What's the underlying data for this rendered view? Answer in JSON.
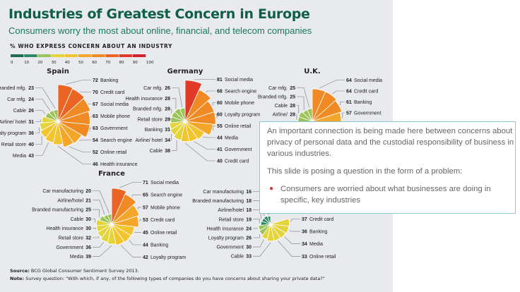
{
  "title": "Industries of Greatest Concern in Europe",
  "subtitle": "Consumers worry the most about online, financial, and telecom companies",
  "legend": {
    "title": "% WHO EXPRESS CONCERN ABOUT AN INDUSTRY",
    "ticks": [
      "0",
      "10",
      "20",
      "30",
      "40",
      "50",
      "60",
      "70",
      "80",
      "90",
      "100"
    ],
    "colors": [
      "#1f6b4f",
      "#2e8a62",
      "#9cc25a",
      "#e4d43c",
      "#f2c42e",
      "#f4a62a",
      "#ef8a25",
      "#ea6524",
      "#e23a26",
      "#d3202b"
    ]
  },
  "chart_data": [
    {
      "type": "polar-area",
      "title": "Spain",
      "right": [
        {
          "label": "Banking",
          "value": 72
        },
        {
          "label": "Credit card",
          "value": 70
        },
        {
          "label": "Social media",
          "value": 67
        },
        {
          "label": "Mobile phone",
          "value": 63
        },
        {
          "label": "Government",
          "value": 63
        },
        {
          "label": "Search engine",
          "value": 54
        },
        {
          "label": "Online retail",
          "value": 52
        },
        {
          "label": "Health insurance",
          "value": 46
        }
      ],
      "left": [
        {
          "label": "Branded mfg.",
          "value": 23
        },
        {
          "label": "Car mfg.",
          "value": 24
        },
        {
          "label": "Cable",
          "value": 26
        },
        {
          "label": "Airline/ hotel",
          "value": 31
        },
        {
          "label": "Loyalty program",
          "value": 36
        },
        {
          "label": "Retail store",
          "value": 40
        },
        {
          "label": "Media",
          "value": 43
        }
      ]
    },
    {
      "type": "polar-area",
      "title": "Germany",
      "right": [
        {
          "label": "Social media",
          "value": 81
        },
        {
          "label": "Search engine",
          "value": 68
        },
        {
          "label": "Mobile phone",
          "value": 60
        },
        {
          "label": "Loyalty program",
          "value": 60
        },
        {
          "label": "Online retail",
          "value": 55
        },
        {
          "label": "Media",
          "value": 44
        },
        {
          "label": "Government",
          "value": 41
        },
        {
          "label": "Credit card",
          "value": 40
        }
      ],
      "left": [
        {
          "label": "Car mfg.",
          "value": 26
        },
        {
          "label": "Health insurance",
          "value": 28
        },
        {
          "label": "Branded mfg.",
          "value": 28
        },
        {
          "label": "Retail store",
          "value": 28
        },
        {
          "label": "Banking",
          "value": 31
        },
        {
          "label": "Airline/ hotel",
          "value": 34
        },
        {
          "label": "Cable",
          "value": 38
        }
      ]
    },
    {
      "type": "polar-area",
      "title": "U.K.",
      "right": [
        {
          "label": "Social media",
          "value": 64
        },
        {
          "label": "Credit card",
          "value": 64
        },
        {
          "label": "Banking",
          "value": 61
        },
        {
          "label": "Government",
          "value": 57
        }
      ],
      "left": [
        {
          "label": "Car mfg.",
          "value": 25
        },
        {
          "label": "Branded mfg.",
          "value": 25
        },
        {
          "label": "Cable",
          "value": 28
        },
        {
          "label": "Airline/",
          "value": 28
        }
      ]
    },
    {
      "type": "polar-area",
      "title": "France",
      "right": [
        {
          "label": "Social media",
          "value": 71
        },
        {
          "label": "Search engine",
          "value": 65
        },
        {
          "label": "Mobile phone",
          "value": 57
        },
        {
          "label": "Credit card",
          "value": 53
        },
        {
          "label": "Online retail",
          "value": 45
        },
        {
          "label": "Banking",
          "value": 44
        },
        {
          "label": "Loyalty program",
          "value": 42
        }
      ],
      "left": [
        {
          "label": "Car manufacturing",
          "value": 20
        },
        {
          "label": "Airline/hotel",
          "value": 21
        },
        {
          "label": "Branded manufacturing",
          "value": 25
        },
        {
          "label": "Cable",
          "value": 30
        },
        {
          "label": "Health insurance",
          "value": 30
        },
        {
          "label": "Retail store",
          "value": 32
        },
        {
          "label": "Government",
          "value": 36
        },
        {
          "label": "Media",
          "value": 39
        }
      ]
    },
    {
      "type": "polar-area",
      "title": "",
      "right": [
        {
          "label": "Credit card",
          "value": 37
        },
        {
          "label": "Banking",
          "value": 36
        },
        {
          "label": "Media",
          "value": 34
        },
        {
          "label": "Online retail",
          "value": 33
        }
      ],
      "left": [
        {
          "label": "Car manufacturing",
          "value": 16
        },
        {
          "label": "Branded manufacturing",
          "value": 18
        },
        {
          "label": "Airline/hotel",
          "value": 18
        },
        {
          "label": "Retail store",
          "value": 19
        },
        {
          "label": "Health insurance",
          "value": 24
        },
        {
          "label": "Loyalty program",
          "value": 26
        },
        {
          "label": "Government",
          "value": 30
        },
        {
          "label": "Cable",
          "value": 33
        }
      ]
    }
  ],
  "source": {
    "label": "Source:",
    "text": " BCG Global Consumer Sentiment Survey 2013."
  },
  "note": {
    "label": "Note:",
    "text": " Survey question: \"With which, if any, of the following types of companies do you have concerns about sharing your private data?\""
  },
  "overlay": {
    "para1": "An important connection is being made here between concerns about privacy of personal data and the custodial responsibility of business in various industries.",
    "para2": "This slide is posing a question in the form of a problem:",
    "bullets": [
      "Consumers are worried about what businesses are doing in specific, key industries"
    ]
  }
}
